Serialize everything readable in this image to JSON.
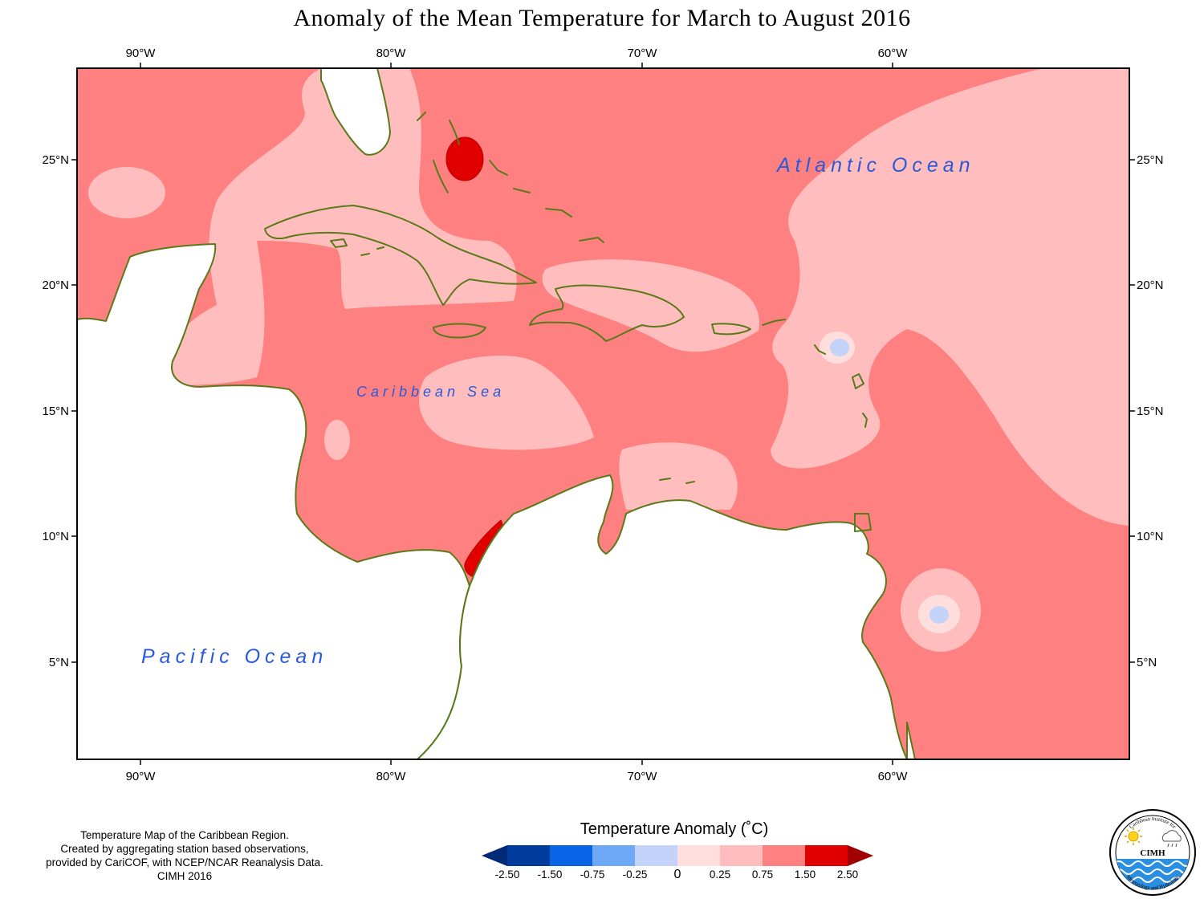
{
  "title": "Anomaly of the Mean Temperature for March to August 2016",
  "map": {
    "lon_labels": [
      "90°W",
      "80°W",
      "70°W",
      "60°W"
    ],
    "lat_labels": [
      "25°N",
      "20°N",
      "15°N",
      "10°N",
      "5°N"
    ],
    "ocean_labels": {
      "atlantic": "Atlantic Ocean",
      "caribbean": "Caribbean Sea",
      "pacific": "Pacific Ocean"
    }
  },
  "legend": {
    "title": "Temperature Anomaly (˚C)",
    "bins": [
      {
        "from": -2.5,
        "to": -1.5,
        "color": "#003c9c"
      },
      {
        "from": -1.5,
        "to": -0.75,
        "color": "#0a64e6"
      },
      {
        "from": -0.75,
        "to": -0.25,
        "color": "#6fa8f5"
      },
      {
        "from": -0.25,
        "to": 0,
        "color": "#c4d3fa"
      },
      {
        "from": 0,
        "to": 0.25,
        "color": "#ffdede"
      },
      {
        "from": 0.25,
        "to": 0.75,
        "color": "#ffbdbd"
      },
      {
        "from": 0.75,
        "to": 1.5,
        "color": "#ff8080"
      },
      {
        "from": 1.5,
        "to": 2.5,
        "color": "#e00000"
      }
    ],
    "low_arrow_color": "#002a78",
    "high_arrow_color": "#a00000",
    "tick_labels": [
      "-2.50",
      "-1.50",
      "-0.75",
      "-0.25",
      "0",
      "0.25",
      "0.75",
      "1.50",
      "2.50"
    ]
  },
  "footnote": {
    "line1": "Temperature Map of the Caribbean Region.",
    "line2": "Created by aggregating station based observations,",
    "line3": "provided by CariCOF, with NCEP/NCAR Reanalysis Data.",
    "line4": "CIMH 2016"
  },
  "logo": {
    "top_text": "Caribbean Institute for",
    "bottom_text": "Meteorology and Hydrology",
    "center_text": "CIMH"
  },
  "colors": {
    "coast": "#5a7a1a",
    "ocean_text": "#2a5ad8"
  }
}
